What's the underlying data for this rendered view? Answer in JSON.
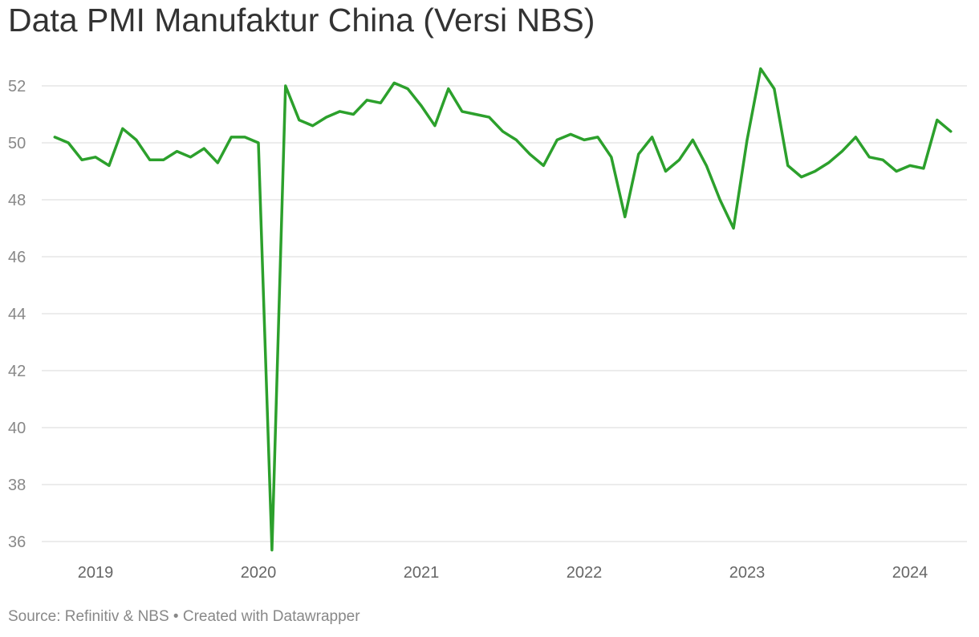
{
  "title": "Data PMI Manufaktur China (Versi NBS)",
  "footer": {
    "source_label": "Source: Refinitiv & NBS",
    "separator": "•",
    "credit": "Created with Datawrapper"
  },
  "colors": {
    "line": "#2ca02c",
    "grid": "#e1e1e1",
    "title": "#333333",
    "ytick": "#888888",
    "xtick": "#666666"
  },
  "chart_data": {
    "type": "line",
    "title": "Data PMI Manufaktur China (Versi NBS)",
    "xlabel": "",
    "ylabel": "",
    "ylim": [
      36,
      52
    ],
    "yticks": [
      36,
      38,
      40,
      42,
      44,
      46,
      48,
      50,
      52
    ],
    "xticks": [
      "2019",
      "2020",
      "2021",
      "2022",
      "2023",
      "2024"
    ],
    "grid": true,
    "legend": "none",
    "series": [
      {
        "x": [
          "2018-10",
          "2018-11",
          "2018-12",
          "2019-01",
          "2019-02",
          "2019-03",
          "2019-04",
          "2019-05",
          "2019-06",
          "2019-07",
          "2019-08",
          "2019-09",
          "2019-10",
          "2019-11",
          "2019-12",
          "2020-01",
          "2020-02",
          "2020-03",
          "2020-04",
          "2020-05",
          "2020-06",
          "2020-07",
          "2020-08",
          "2020-09",
          "2020-10",
          "2020-11",
          "2020-12",
          "2021-01",
          "2021-02",
          "2021-03",
          "2021-04",
          "2021-05",
          "2021-06",
          "2021-07",
          "2021-08",
          "2021-09",
          "2021-10",
          "2021-11",
          "2021-12",
          "2022-01",
          "2022-02",
          "2022-03",
          "2022-04",
          "2022-05",
          "2022-06",
          "2022-07",
          "2022-08",
          "2022-09",
          "2022-10",
          "2022-11",
          "2022-12",
          "2023-01",
          "2023-02",
          "2023-03",
          "2023-04",
          "2023-05",
          "2023-06",
          "2023-07",
          "2023-08",
          "2023-09",
          "2023-10",
          "2023-11",
          "2023-12",
          "2024-01",
          "2024-02",
          "2024-03",
          "2024-04"
        ],
        "values": [
          50.2,
          50.0,
          49.4,
          49.5,
          49.2,
          50.5,
          50.1,
          49.4,
          49.4,
          49.7,
          49.5,
          49.8,
          49.3,
          50.2,
          50.2,
          50.0,
          35.7,
          52.0,
          50.8,
          50.6,
          50.9,
          51.1,
          51.0,
          51.5,
          51.4,
          52.1,
          51.9,
          51.3,
          50.6,
          51.9,
          51.1,
          51.0,
          50.9,
          50.4,
          50.1,
          49.6,
          49.2,
          50.1,
          50.3,
          50.1,
          50.2,
          49.5,
          47.4,
          49.6,
          50.2,
          49.0,
          49.4,
          50.1,
          49.2,
          48.0,
          47.0,
          50.1,
          52.6,
          51.9,
          49.2,
          48.8,
          49.0,
          49.3,
          49.7,
          50.2,
          49.5,
          49.4,
          49.0,
          49.2,
          49.1,
          50.8,
          50.4
        ]
      }
    ]
  }
}
